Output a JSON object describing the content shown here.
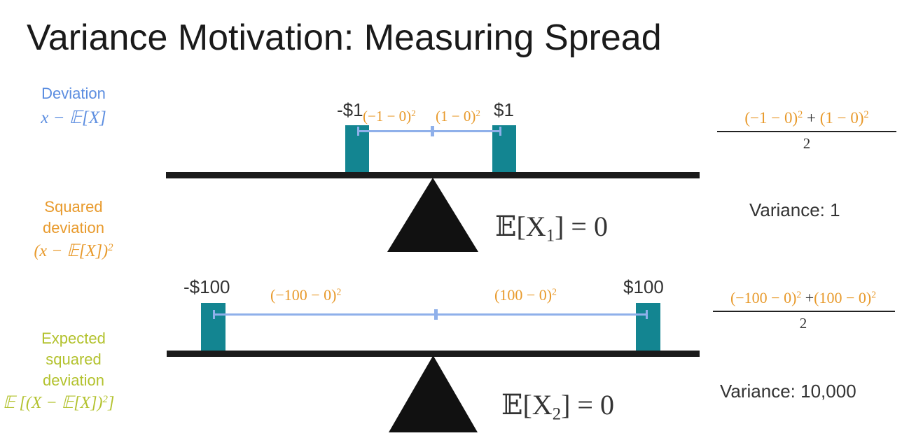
{
  "title": "Variance Motivation: Measuring Spread",
  "legend": {
    "deviation_label": "Deviation",
    "deviation_formula": "x − 𝔼[X]",
    "squared_label_1": "Squared",
    "squared_label_2": "deviation",
    "squared_formula": "(x − 𝔼[X])",
    "squared_exp": "2",
    "expected_label_1": "Expected",
    "expected_label_2": "squared",
    "expected_label_3": "deviation",
    "expected_formula": "𝔼 [(X − 𝔼[X])",
    "expected_exp": "2",
    "expected_close": "]"
  },
  "scale1": {
    "left_value": "-$1",
    "right_value": "$1",
    "left_term": "(−1 − 0)",
    "right_term": "(1 − 0)",
    "exp": "2",
    "expectation_base": "𝔼[X",
    "expectation_sub": "1",
    "expectation_tail": "] = 0",
    "frac_left": "(−1 − 0)",
    "frac_plus": " + ",
    "frac_right": "(1 − 0)",
    "frac_den": "2",
    "variance_text": "Variance: 1"
  },
  "scale2": {
    "left_value": "-$100",
    "right_value": "$100",
    "left_term": "(−100 − 0)",
    "right_term": "(100 − 0)",
    "exp": "2",
    "expectation_base": "𝔼[X",
    "expectation_sub": "2",
    "expectation_tail": "] = 0",
    "frac_left": "(−100 − 0)",
    "frac_plus": " +",
    "frac_right": "(100 − 0)",
    "frac_den": "2",
    "variance_text": "Variance: 10,000"
  },
  "colors": {
    "deviation": "#5b8de0",
    "squared": "#e89a2c",
    "expected": "#b3c22e",
    "block": "#138591",
    "beam": "#1b1b1b"
  }
}
